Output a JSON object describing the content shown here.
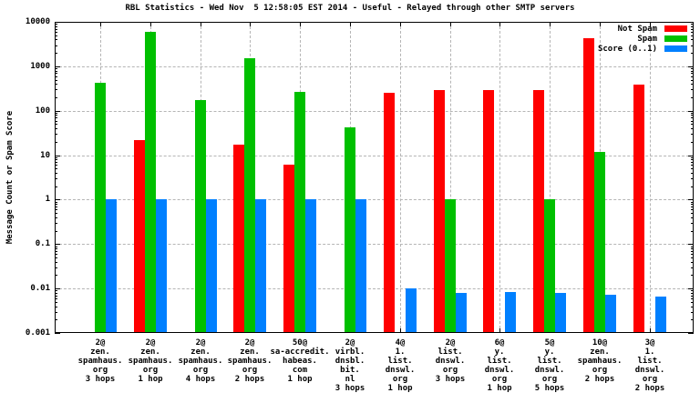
{
  "chart_data": {
    "type": "bar",
    "title": "RBL Statistics - Wed Nov  5 12:58:05 EST 2014 - Useful - Relayed through other SMTP servers",
    "ylabel": "Message Count or Spam Score",
    "yscale": "log",
    "ylim": [
      0.001,
      10000
    ],
    "y_tick_labels": [
      "10000",
      "1000",
      "100",
      "10",
      "1",
      "0.1",
      "0.01",
      "0.001"
    ],
    "grid": true,
    "legend_position": "top-right-inside",
    "series": [
      {
        "name": "Not Spam",
        "color": "#ff0000",
        "values": [
          0,
          22,
          0,
          17,
          6,
          0,
          250,
          290,
          290,
          290,
          4200,
          380
        ]
      },
      {
        "name": "Spam",
        "color": "#00c000",
        "values": [
          420,
          6000,
          170,
          1500,
          260,
          42,
          0,
          1,
          0,
          1,
          12,
          0
        ]
      },
      {
        "name": "Score (0..1)",
        "color": "#0080ff",
        "values": [
          1,
          1,
          1,
          1,
          1,
          1,
          0.01,
          0.008,
          0.0085,
          0.008,
          0.0073,
          0.0065
        ]
      }
    ],
    "categories": [
      [
        "2@",
        "zen.",
        "spamhaus.",
        "org",
        "3 hops"
      ],
      [
        "2@",
        "zen.",
        "spamhaus.",
        "org",
        "1 hop"
      ],
      [
        "2@",
        "zen.",
        "spamhaus.",
        "org",
        "4 hops"
      ],
      [
        "2@",
        "zen.",
        "spamhaus.",
        "org",
        "2 hops"
      ],
      [
        "50@",
        "sa-accredit.",
        "habeas.",
        "com",
        "1 hop"
      ],
      [
        "2@",
        "virbl.",
        "dnsbl.",
        "bit.",
        "nl",
        "3 hops"
      ],
      [
        "4@",
        "1.",
        "list.",
        "dnswl.",
        "org",
        "1 hop"
      ],
      [
        "2@",
        "list.",
        "dnswl.",
        "org",
        "3 hops"
      ],
      [
        "6@",
        "y.",
        "list.",
        "dnswl.",
        "org",
        "1 hop"
      ],
      [
        "5@",
        "y.",
        "list.",
        "dnswl.",
        "org",
        "5 hops"
      ],
      [
        "10@",
        "zen.",
        "spamhaus.",
        "org",
        "2 hops"
      ],
      [
        "3@",
        "1.",
        "list.",
        "dnswl.",
        "org",
        "2 hops"
      ]
    ]
  }
}
